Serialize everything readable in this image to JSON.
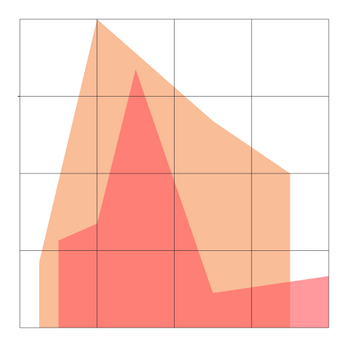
{
  "chart_data": {
    "type": "area",
    "title": "",
    "xlabel": "",
    "ylabel": "",
    "xlim": [
      0,
      4
    ],
    "ylim": [
      0,
      4
    ],
    "grid": true,
    "legend": "none",
    "series": [
      {
        "color": "#f7a16c",
        "opacity": 0.7,
        "x": [
          0.25,
          1.0,
          2.5,
          3.5,
          3.5,
          0.25
        ],
        "y": [
          0.85,
          4.0,
          2.68,
          2.0,
          0.0,
          0.0
        ]
      },
      {
        "color": "#ff555d",
        "opacity": 0.6,
        "x": [
          0.5,
          1.0,
          1.5,
          2.5,
          4.0,
          4.0,
          0.5
        ],
        "y": [
          1.13,
          1.35,
          3.35,
          0.45,
          0.67,
          0.0,
          0.0
        ]
      }
    ]
  }
}
